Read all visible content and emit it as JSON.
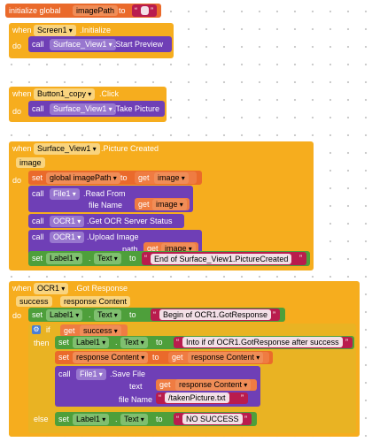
{
  "init": {
    "label": "initialize global",
    "var": "imagePath",
    "to": "to"
  },
  "screen": {
    "when": "when",
    "comp": "Screen1",
    "event": ".Initialize",
    "do": "do",
    "call": "call",
    "target": "Surface_View1",
    "method": ".Start Preview"
  },
  "button": {
    "when": "when",
    "comp": "Button1_copy",
    "event": ".Click",
    "do": "do",
    "call": "call",
    "target": "Surface_View1",
    "method": ".Take Picture"
  },
  "picture": {
    "when": "when",
    "comp": "Surface_View1",
    "event": ".Picture Created",
    "param": "image",
    "do": "do",
    "set": "set",
    "var": "global imagePath",
    "to": "to",
    "get": "get",
    "get_val": "image",
    "read_call": "call",
    "read_comp": "File1",
    "read_method": ".Read From",
    "read_arg": "file Name",
    "read_get": "get",
    "read_val": "image",
    "status_call": "call",
    "status_comp": "OCR1",
    "status_method": ".Get OCR Server Status",
    "upload_call": "call",
    "upload_comp": "OCR1",
    "upload_method": ".Upload Image",
    "upload_arg": "path",
    "upload_get": "get",
    "upload_val": "image",
    "label_set": "set",
    "label_comp": "Label1",
    "label_dot": ".",
    "label_prop": "Text",
    "label_to": "to",
    "label_text": "End of Surface_View1.PictureCreated"
  },
  "ocr": {
    "when": "when",
    "comp": "OCR1",
    "event": ".Got Response",
    "param1": "success",
    "param2": "response Content",
    "do": "do",
    "set1": "set",
    "set1_comp": "Label1",
    "set1_dot": ".",
    "set1_prop": "Text",
    "set1_to": "to",
    "set1_text": "Begin of OCR1.GotResponse",
    "if": "if",
    "if_get": "get",
    "if_val": "success",
    "then": "then",
    "else": "else",
    "set2": "set",
    "set2_comp": "Label1",
    "set2_dot": ".",
    "set2_prop": "Text",
    "set2_to": "to",
    "set2_text": "Into if of OCR1.GotResponse after success",
    "set3": "set",
    "set3_var": "response Content",
    "set3_to": "to",
    "set3_get": "get",
    "set3_val": "response Content",
    "save_call": "call",
    "save_comp": "File1",
    "save_method": ".Save File",
    "save_text_arg": "text",
    "save_text_get": "get",
    "save_text_val": "response Content",
    "save_file_arg": "file Name",
    "save_file_val": "/takenPicture.txt",
    "set4": "set",
    "set4_comp": "Label1",
    "set4_dot": ".",
    "set4_prop": "Text",
    "set4_to": "to",
    "set4_text": "NO SUCCESS"
  },
  "colors": {
    "event": "#f6ad1e",
    "global_var": "#ea6a2b",
    "component": "#6f3fb6",
    "setter": "#4e9f3b",
    "control": "#e9b323",
    "text": "#b91c4d"
  }
}
